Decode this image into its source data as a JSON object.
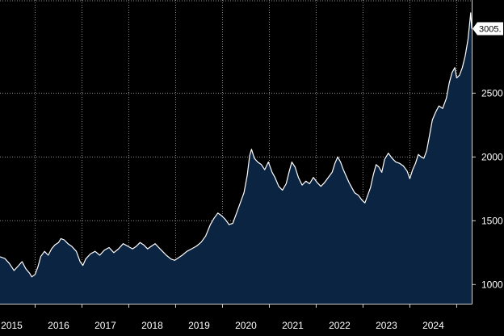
{
  "chart_data": {
    "type": "area",
    "title": "",
    "xlabel": "",
    "ylabel": "",
    "x_tick_labels": [
      "2015",
      "2016",
      "2017",
      "2018",
      "2019",
      "2020",
      "2021",
      "2022",
      "2023",
      "2024"
    ],
    "x_ticks": [
      2015,
      2016,
      2017,
      2018,
      2019,
      2020,
      2021,
      2022,
      2023,
      2024
    ],
    "xlim": [
      2014.75,
      2024.82
    ],
    "ylim": [
      850,
      3230
    ],
    "y_ticks": [
      1000,
      1500,
      2000,
      2500
    ],
    "y_tick_labels": [
      "1000",
      "1500",
      "2000",
      "2500"
    ],
    "grid": true,
    "last_value_label": "3005.",
    "last_value": 3005,
    "colors": {
      "background": "#000000",
      "fill": "#0b2442",
      "line": "#ffffff",
      "grid": "#8a8a8a"
    },
    "series": [
      {
        "points": [
          [
            2014.75,
            1218
          ],
          [
            2014.85,
            1205
          ],
          [
            2014.95,
            1165
          ],
          [
            2015.05,
            1110
          ],
          [
            2015.15,
            1150
          ],
          [
            2015.22,
            1180
          ],
          [
            2015.3,
            1125
          ],
          [
            2015.38,
            1090
          ],
          [
            2015.43,
            1060
          ],
          [
            2015.5,
            1080
          ],
          [
            2015.56,
            1140
          ],
          [
            2015.62,
            1220
          ],
          [
            2015.7,
            1260
          ],
          [
            2015.78,
            1230
          ],
          [
            2015.85,
            1280
          ],
          [
            2015.92,
            1310
          ],
          [
            2016.0,
            1330
          ],
          [
            2016.05,
            1360
          ],
          [
            2016.12,
            1350
          ],
          [
            2016.2,
            1320
          ],
          [
            2016.28,
            1300
          ],
          [
            2016.38,
            1260
          ],
          [
            2016.46,
            1180
          ],
          [
            2016.52,
            1150
          ],
          [
            2016.58,
            1200
          ],
          [
            2016.68,
            1240
          ],
          [
            2016.78,
            1260
          ],
          [
            2016.88,
            1230
          ],
          [
            2016.98,
            1270
          ],
          [
            2017.08,
            1290
          ],
          [
            2017.18,
            1250
          ],
          [
            2017.28,
            1280
          ],
          [
            2017.38,
            1320
          ],
          [
            2017.48,
            1300
          ],
          [
            2017.58,
            1280
          ],
          [
            2017.66,
            1300
          ],
          [
            2017.74,
            1330
          ],
          [
            2017.82,
            1310
          ],
          [
            2017.9,
            1280
          ],
          [
            2017.98,
            1300
          ],
          [
            2018.06,
            1320
          ],
          [
            2018.14,
            1290
          ],
          [
            2018.22,
            1260
          ],
          [
            2018.3,
            1230
          ],
          [
            2018.4,
            1200
          ],
          [
            2018.48,
            1190
          ],
          [
            2018.56,
            1210
          ],
          [
            2018.64,
            1230
          ],
          [
            2018.74,
            1260
          ],
          [
            2018.84,
            1280
          ],
          [
            2018.94,
            1300
          ],
          [
            2019.04,
            1330
          ],
          [
            2019.14,
            1380
          ],
          [
            2019.24,
            1470
          ],
          [
            2019.32,
            1520
          ],
          [
            2019.4,
            1560
          ],
          [
            2019.48,
            1540
          ],
          [
            2019.56,
            1510
          ],
          [
            2019.64,
            1470
          ],
          [
            2019.72,
            1480
          ],
          [
            2019.8,
            1560
          ],
          [
            2019.88,
            1640
          ],
          [
            2019.96,
            1720
          ],
          [
            2020.03,
            1860
          ],
          [
            2020.08,
            2010
          ],
          [
            2020.12,
            2060
          ],
          [
            2020.18,
            1990
          ],
          [
            2020.25,
            1960
          ],
          [
            2020.33,
            1940
          ],
          [
            2020.4,
            1900
          ],
          [
            2020.48,
            1960
          ],
          [
            2020.56,
            1880
          ],
          [
            2020.62,
            1840
          ],
          [
            2020.7,
            1770
          ],
          [
            2020.78,
            1740
          ],
          [
            2020.86,
            1790
          ],
          [
            2020.92,
            1880
          ],
          [
            2020.98,
            1960
          ],
          [
            2021.05,
            1920
          ],
          [
            2021.12,
            1840
          ],
          [
            2021.2,
            1780
          ],
          [
            2021.28,
            1810
          ],
          [
            2021.36,
            1790
          ],
          [
            2021.44,
            1840
          ],
          [
            2021.52,
            1800
          ],
          [
            2021.6,
            1770
          ],
          [
            2021.68,
            1800
          ],
          [
            2021.76,
            1840
          ],
          [
            2021.84,
            1880
          ],
          [
            2021.9,
            1950
          ],
          [
            2021.96,
            2000
          ],
          [
            2022.02,
            1960
          ],
          [
            2022.08,
            1900
          ],
          [
            2022.14,
            1850
          ],
          [
            2022.2,
            1800
          ],
          [
            2022.26,
            1760
          ],
          [
            2022.32,
            1720
          ],
          [
            2022.4,
            1700
          ],
          [
            2022.48,
            1660
          ],
          [
            2022.54,
            1640
          ],
          [
            2022.6,
            1700
          ],
          [
            2022.66,
            1760
          ],
          [
            2022.72,
            1860
          ],
          [
            2022.78,
            1940
          ],
          [
            2022.84,
            1920
          ],
          [
            2022.9,
            1880
          ],
          [
            2022.96,
            1980
          ],
          [
            2023.04,
            2030
          ],
          [
            2023.12,
            1990
          ],
          [
            2023.2,
            1960
          ],
          [
            2023.28,
            1950
          ],
          [
            2023.36,
            1930
          ],
          [
            2023.44,
            1890
          ],
          [
            2023.5,
            1830
          ],
          [
            2023.56,
            1900
          ],
          [
            2023.62,
            1950
          ],
          [
            2023.68,
            2020
          ],
          [
            2023.74,
            2000
          ],
          [
            2023.8,
            1990
          ],
          [
            2023.86,
            2050
          ],
          [
            2023.92,
            2170
          ],
          [
            2023.98,
            2290
          ],
          [
            2024.05,
            2350
          ],
          [
            2024.12,
            2400
          ],
          [
            2024.2,
            2380
          ],
          [
            2024.28,
            2460
          ],
          [
            2024.34,
            2580
          ],
          [
            2024.4,
            2660
          ],
          [
            2024.46,
            2700
          ],
          [
            2024.5,
            2620
          ],
          [
            2024.56,
            2640
          ],
          [
            2024.62,
            2700
          ],
          [
            2024.68,
            2790
          ],
          [
            2024.74,
            2920
          ],
          [
            2024.78,
            3060
          ],
          [
            2024.8,
            3130
          ],
          [
            2024.82,
            3005
          ]
        ]
      }
    ]
  }
}
